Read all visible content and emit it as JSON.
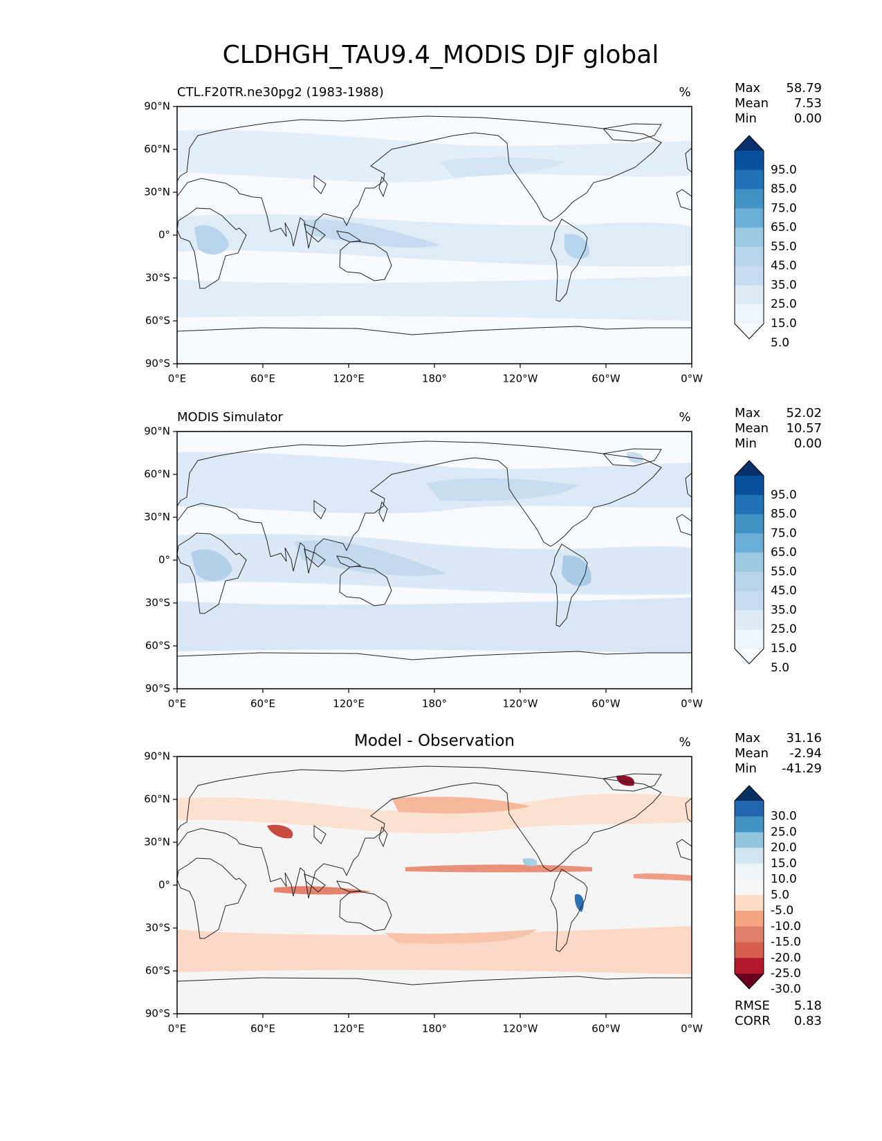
{
  "title": "CLDHGH_TAU9.4_MODIS DJF global",
  "lon_ticks": [
    "0°E",
    "60°E",
    "120°E",
    "180°",
    "120°W",
    "60°W",
    "0°W"
  ],
  "lat_ticks": [
    "90°N",
    "60°N",
    "30°N",
    "0°",
    "30°S",
    "60°S",
    "90°S"
  ],
  "stat_labels": {
    "max": "Max",
    "mean": "Mean",
    "min": "Min",
    "rmse": "RMSE",
    "corr": "CORR"
  },
  "panels": [
    {
      "id": "test",
      "title_left": "CTL.F20TR.ne30pg2 (1983-1988)",
      "title_center": "",
      "units": "%",
      "stats": {
        "max": "58.79",
        "mean": "7.53",
        "min": "0.00"
      },
      "colorbar": {
        "labels": [
          "95.0",
          "85.0",
          "75.0",
          "65.0",
          "55.0",
          "45.0",
          "35.0",
          "25.0",
          "15.0",
          "5.0"
        ],
        "colors": [
          "#08306b",
          "#08519c",
          "#2171b5",
          "#4292c6",
          "#6baed6",
          "#9ecae1",
          "#b7d4ea",
          "#c6dbef",
          "#deebf7",
          "#eef5fc",
          "#f7fbff"
        ]
      }
    },
    {
      "id": "ref",
      "title_left": "MODIS Simulator",
      "title_center": "",
      "units": "%",
      "stats": {
        "max": "52.02",
        "mean": "10.57",
        "min": "0.00"
      },
      "colorbar": {
        "labels": [
          "95.0",
          "85.0",
          "75.0",
          "65.0",
          "55.0",
          "45.0",
          "35.0",
          "25.0",
          "15.0",
          "5.0"
        ],
        "colors": [
          "#08306b",
          "#08519c",
          "#2171b5",
          "#4292c6",
          "#6baed6",
          "#9ecae1",
          "#b7d4ea",
          "#c6dbef",
          "#deebf7",
          "#eef5fc",
          "#f7fbff"
        ]
      }
    },
    {
      "id": "diff",
      "title_left": "",
      "title_center": "Model - Observation",
      "units": "%",
      "stats": {
        "max": "31.16",
        "mean": "-2.94",
        "min": "-41.29"
      },
      "rmse": "5.18",
      "corr": "0.83",
      "colorbar": {
        "labels": [
          "30.0",
          "25.0",
          "20.0",
          "15.0",
          "10.0",
          "5.0",
          "-5.0",
          "-10.0",
          "-15.0",
          "-20.0",
          "-25.0",
          "-30.0"
        ],
        "colors": [
          "#053061",
          "#2166ac",
          "#4393c3",
          "#92c5de",
          "#d1e5f0",
          "#eef4f8",
          "#f7f7f7",
          "#fddbc7",
          "#f4a582",
          "#e0806a",
          "#d6604d",
          "#b2182b",
          "#67001f"
        ]
      }
    }
  ],
  "colors": {
    "test_background": "#f7fbff",
    "diff_background": "#f5f5f5",
    "coastline": "#222222"
  }
}
